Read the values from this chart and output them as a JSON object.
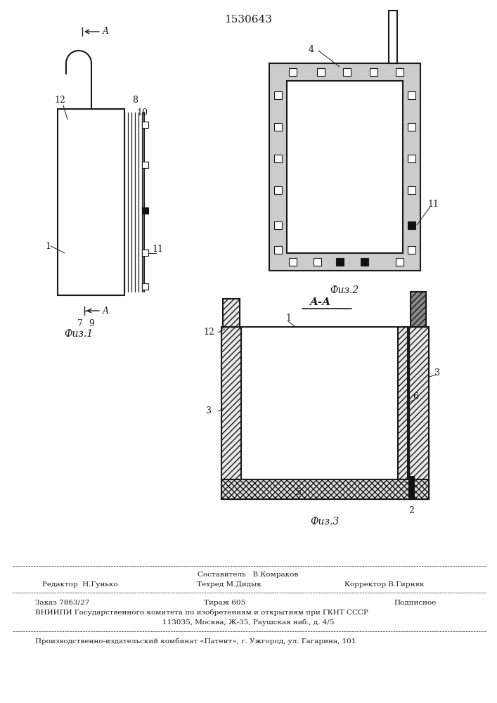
{
  "title": "1530643",
  "bg_color": "#ffffff",
  "fig1_label": "Физ.1",
  "fig2_label": "Физ.2",
  "fig3_label": "Физ.3",
  "section_label": "A-A",
  "footer_sostavitel": "Составитель   В.Комраков",
  "footer_redaktor": "Редактор  Н.Гунько",
  "footer_tehred": "Техред М.Дидык",
  "footer_korrektor": "Корректор В.Гирняк",
  "footer_zakaz": "Заказ 7863/27",
  "footer_tirazh": "Тираж 605",
  "footer_podpisnoe": "Подписное",
  "footer_vniip": "ВНИИПИ Государственного комитета по изобретениям и открытиям при ГКНТ СССР",
  "footer_addr": "113035, Москва, Ж-35, Раушская наб., д. 4/5",
  "footer_patent": "Производственно-издательский комбинат «Патент», г. Ужгород, ул. Гагарина, 101",
  "line_color": "#1a1a1a"
}
